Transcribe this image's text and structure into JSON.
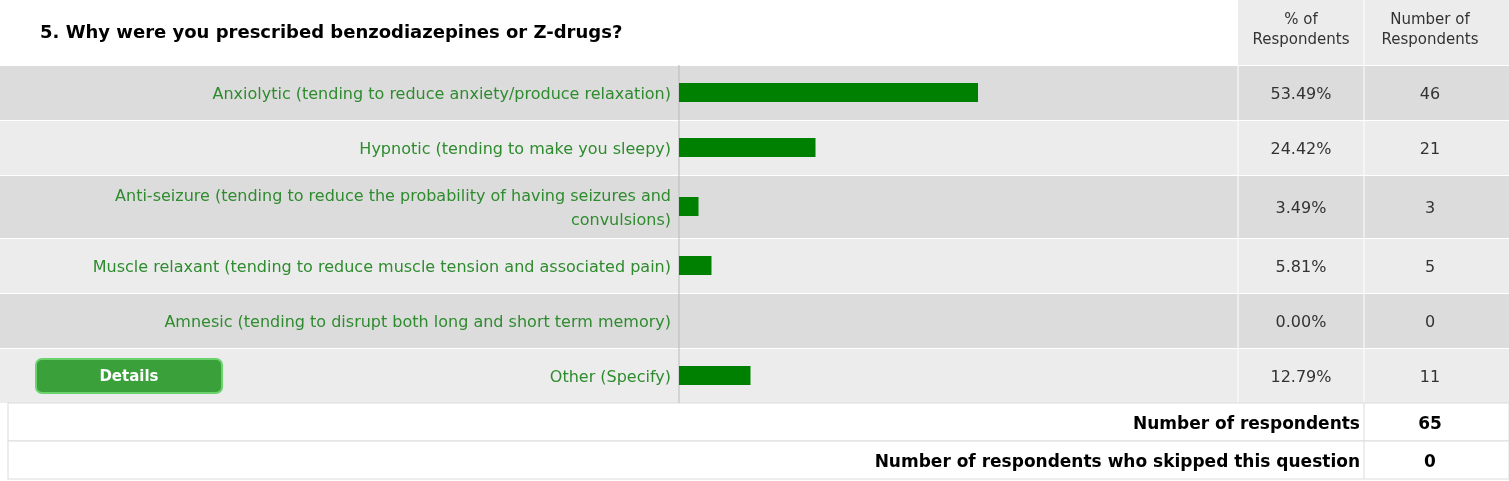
{
  "chart_data": {
    "type": "bar",
    "orientation": "horizontal",
    "title": "5. Why were you prescribed benzodiazepines or Z-drugs?",
    "categories": [
      "Anxiolytic (tending to reduce anxiety/produce relaxation)",
      "Hypnotic (tending to make you sleepy)",
      "Anti-seizure (tending to reduce the probability of having seizures and convulsions)",
      "Muscle relaxant (tending to reduce muscle tension and associated pain)",
      "Amnesic (tending to disrupt both long and short term memory)",
      "Other (Specify)"
    ],
    "values": [
      53.49,
      24.42,
      3.49,
      5.81,
      0.0,
      12.79
    ],
    "value_labels": [
      "53.49%",
      "24.42%",
      "3.49%",
      "5.81%",
      "0.00%",
      "12.79%"
    ],
    "color": "#008000",
    "xlim": [
      0,
      100
    ],
    "annotations": [
      "% of Respondents",
      "Number of Respondents",
      "46",
      "21",
      "3",
      "5",
      "0",
      "11",
      "Number of respondents",
      "65",
      "Number of respondents who skipped this question",
      "0",
      "Details"
    ]
  }
}
